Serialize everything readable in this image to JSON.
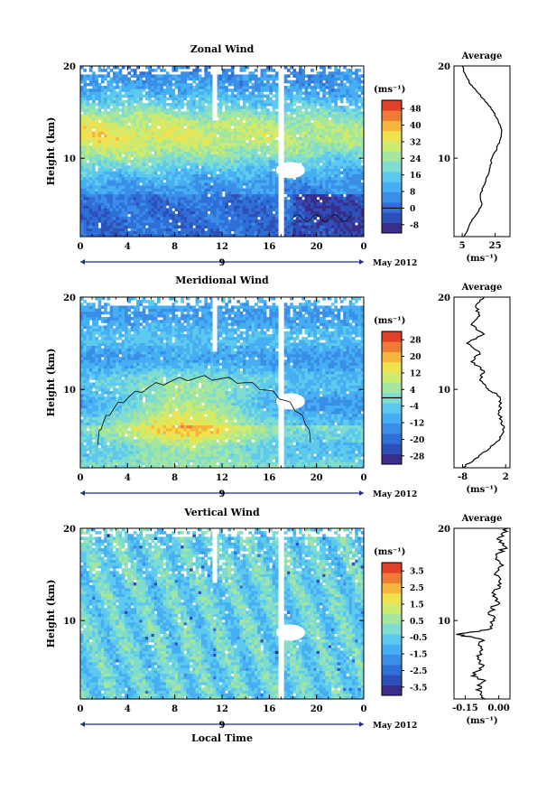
{
  "figure": {
    "time_axis_label": "Local Time",
    "date_label": "May 2012",
    "colors": {
      "colormap": [
        "#3a2e8c",
        "#2f4fb8",
        "#2f6fd8",
        "#3b8ee8",
        "#46aef2",
        "#5dc9ee",
        "#7fdccf",
        "#a4e6a0",
        "#cdeb6e",
        "#f0e14e",
        "#f7b43c",
        "#f07a34",
        "#e0402a"
      ],
      "line": "#000000",
      "axis_date_marker": "#1f2f8f"
    }
  },
  "chart_data": [
    {
      "type": "heatmap",
      "title": "Zonal Wind",
      "ylabel": "Height (km)",
      "xlabel": "Local Time",
      "x_ticks": [
        "0",
        "4",
        "8",
        "12",
        "16",
        "20",
        "0"
      ],
      "x_mid_label": "9",
      "xlim": [
        0,
        24
      ],
      "y_ticks": [
        "20",
        "10"
      ],
      "ylim": [
        1.5,
        20
      ],
      "colorbar": {
        "unit": "(ms⁻¹)",
        "ticks": [
          "48",
          "40",
          "32",
          "24",
          "16",
          "8",
          "0",
          "-8"
        ],
        "range": [
          -12,
          52
        ],
        "zero_line_value": 0
      },
      "data_gap_local_time": [
        16.8,
        17.3
      ],
      "profile": {
        "title": "Average",
        "xlabel": "(ms⁻¹)",
        "x_ticks": [
          "5",
          "25"
        ],
        "xlim": [
          0,
          34
        ],
        "y_ticks": [
          "20",
          "10"
        ],
        "ylim": [
          1.5,
          20
        ],
        "height_km": [
          1.5,
          3,
          4,
          5,
          6,
          7,
          8,
          9,
          10,
          11,
          12,
          13,
          14,
          15,
          16,
          17,
          18,
          19,
          20
        ],
        "wind_ms": [
          6,
          10,
          14,
          17,
          16,
          18,
          20,
          22,
          23,
          26,
          28,
          29,
          27,
          24,
          20,
          15,
          10,
          7,
          5
        ]
      }
    },
    {
      "type": "heatmap",
      "title": "Meridional Wind",
      "ylabel": "Height (km)",
      "xlabel": "Local Time",
      "x_ticks": [
        "0",
        "4",
        "8",
        "12",
        "16",
        "20",
        "0"
      ],
      "x_mid_label": "9",
      "xlim": [
        0,
        24
      ],
      "y_ticks": [
        "20",
        "10"
      ],
      "ylim": [
        1.5,
        20
      ],
      "colorbar": {
        "unit": "(ms⁻¹)",
        "ticks": [
          "28",
          "20",
          "12",
          "4",
          "-4",
          "-12",
          "-20",
          "-28"
        ],
        "range": [
          -32,
          32
        ],
        "zero_line_value": 0
      },
      "data_gap_local_time": [
        16.8,
        17.3
      ],
      "profile": {
        "title": "Average",
        "xlabel": "(ms⁻¹)",
        "x_ticks": [
          "-8",
          "2"
        ],
        "xlim": [
          -10,
          3
        ],
        "y_ticks": [
          "20",
          "10"
        ],
        "ylim": [
          1.5,
          20
        ],
        "height_km": [
          1.5,
          2.5,
          3.5,
          4.5,
          5.5,
          6.5,
          7.5,
          8.5,
          9.5,
          10,
          11,
          12,
          13,
          14,
          15,
          16,
          17,
          18,
          19,
          20
        ],
        "wind_ms": [
          -8,
          -5,
          -2,
          0.5,
          1.5,
          1.2,
          0.5,
          1,
          0,
          -2,
          -4,
          -3,
          -6,
          -4,
          -7,
          -3,
          -6,
          -4,
          -5,
          -3
        ]
      }
    },
    {
      "type": "heatmap",
      "title": "Vertical Wind",
      "ylabel": "Height (km)",
      "xlabel": "Local Time",
      "x_ticks": [
        "0",
        "4",
        "8",
        "12",
        "16",
        "20",
        "0"
      ],
      "x_mid_label": "9",
      "xlim": [
        0,
        24
      ],
      "y_ticks": [
        "20",
        "10"
      ],
      "ylim": [
        1.5,
        20
      ],
      "colorbar": {
        "unit": "(ms⁻¹)",
        "ticks": [
          "3.5",
          "2.5",
          "1.5",
          "0.5",
          "-0.5",
          "-1.5",
          "-2.5",
          "-3.5"
        ],
        "range": [
          -4,
          4
        ],
        "zero_line_value": null
      },
      "data_gap_local_time": [
        16.8,
        17.3
      ],
      "profile": {
        "title": "Average",
        "xlabel": "(ms⁻¹)",
        "x_ticks": [
          "-0.15",
          "0.00"
        ],
        "xlim": [
          -0.2,
          0.05
        ],
        "y_ticks": [
          "20",
          "10"
        ],
        "ylim": [
          1.5,
          20
        ],
        "height_km": [
          1.5,
          2.5,
          3.5,
          4,
          5,
          6,
          7,
          8,
          8.5,
          9,
          10,
          11,
          12,
          13,
          14,
          15,
          16,
          17,
          18,
          19,
          20
        ],
        "wind_ms": [
          -0.06,
          -0.1,
          -0.06,
          -0.12,
          -0.07,
          -0.09,
          -0.08,
          -0.08,
          -0.19,
          -0.05,
          -0.02,
          -0.04,
          0.0,
          -0.03,
          0.01,
          -0.02,
          0.02,
          -0.01,
          0.03,
          0.0,
          0.04
        ]
      }
    }
  ]
}
